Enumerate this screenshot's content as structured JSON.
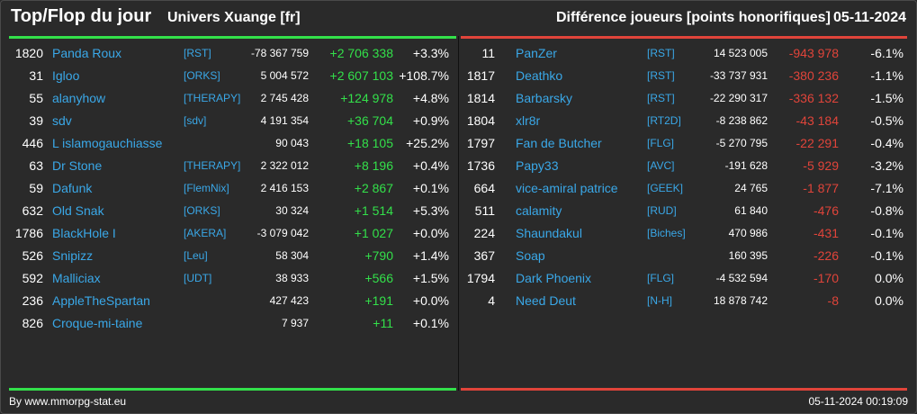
{
  "header": {
    "title": "Top/Flop du jour",
    "universe": "Univers Xuange [fr]",
    "metric": "Différence joueurs [points honorifiques]",
    "date": "05-11-2024"
  },
  "colors": {
    "top_accent": "#33e04a",
    "flop_accent": "#e0443a",
    "name_link": "#3aa8e8",
    "background": "#2a2a2a"
  },
  "top": [
    {
      "rank": "1820",
      "name": "Panda Roux",
      "alliance": "[RST]",
      "points": "-78 367 759",
      "diff": "+2 706 338",
      "pct": "+3.3%"
    },
    {
      "rank": "31",
      "name": "Igloo",
      "alliance": "[ORKS]",
      "points": "5 004 572",
      "diff": "+2 607 103",
      "pct": "+108.7%"
    },
    {
      "rank": "55",
      "name": "alanyhow",
      "alliance": "[THERAPY]",
      "points": "2 745 428",
      "diff": "+124 978",
      "pct": "+4.8%"
    },
    {
      "rank": "39",
      "name": "sdv",
      "alliance": "[sdv]",
      "points": "4 191 354",
      "diff": "+36 704",
      "pct": "+0.9%"
    },
    {
      "rank": "446",
      "name": "L islamogauchiasse",
      "alliance": "",
      "points": "90 043",
      "diff": "+18 105",
      "pct": "+25.2%"
    },
    {
      "rank": "63",
      "name": "Dr Stone",
      "alliance": "[THERAPY]",
      "points": "2 322 012",
      "diff": "+8 196",
      "pct": "+0.4%"
    },
    {
      "rank": "59",
      "name": "Dafunk",
      "alliance": "[FlemNix]",
      "points": "2 416 153",
      "diff": "+2 867",
      "pct": "+0.1%"
    },
    {
      "rank": "632",
      "name": "Old Snak",
      "alliance": "[ORKS]",
      "points": "30 324",
      "diff": "+1 514",
      "pct": "+5.3%"
    },
    {
      "rank": "1786",
      "name": "BlackHole I",
      "alliance": "[AKERA]",
      "points": "-3 079 042",
      "diff": "+1 027",
      "pct": "+0.0%"
    },
    {
      "rank": "526",
      "name": "Snipizz",
      "alliance": "[Leu]",
      "points": "58 304",
      "diff": "+790",
      "pct": "+1.4%"
    },
    {
      "rank": "592",
      "name": "Malliciax",
      "alliance": "[UDT]",
      "points": "38 933",
      "diff": "+566",
      "pct": "+1.5%"
    },
    {
      "rank": "236",
      "name": "AppleTheSpartan",
      "alliance": "",
      "points": "427 423",
      "diff": "+191",
      "pct": "+0.0%"
    },
    {
      "rank": "826",
      "name": "Croque-mi-taine",
      "alliance": "",
      "points": "7 937",
      "diff": "+11",
      "pct": "+0.1%"
    }
  ],
  "flop": [
    {
      "rank": "11",
      "name": "PanZer",
      "alliance": "[RST]",
      "points": "14 523 005",
      "diff": "-943 978",
      "pct": "-6.1%"
    },
    {
      "rank": "1817",
      "name": "Deathko",
      "alliance": "[RST]",
      "points": "-33 737 931",
      "diff": "-380 236",
      "pct": "-1.1%"
    },
    {
      "rank": "1814",
      "name": "Barbarsky",
      "alliance": "[RST]",
      "points": "-22 290 317",
      "diff": "-336 132",
      "pct": "-1.5%"
    },
    {
      "rank": "1804",
      "name": "xlr8r",
      "alliance": "[RT2D]",
      "points": "-8 238 862",
      "diff": "-43 184",
      "pct": "-0.5%"
    },
    {
      "rank": "1797",
      "name": "Fan de Butcher",
      "alliance": "[FLG]",
      "points": "-5 270 795",
      "diff": "-22 291",
      "pct": "-0.4%"
    },
    {
      "rank": "1736",
      "name": "Papy33",
      "alliance": "[AVC]",
      "points": "-191 628",
      "diff": "-5 929",
      "pct": "-3.2%"
    },
    {
      "rank": "664",
      "name": "vice-amiral patrice",
      "alliance": "[GEEK]",
      "points": "24 765",
      "diff": "-1 877",
      "pct": "-7.1%"
    },
    {
      "rank": "511",
      "name": "calamity",
      "alliance": "[RUD]",
      "points": "61 840",
      "diff": "-476",
      "pct": "-0.8%"
    },
    {
      "rank": "224",
      "name": "Shaundakul",
      "alliance": "[Biches]",
      "points": "470 986",
      "diff": "-431",
      "pct": "-0.1%"
    },
    {
      "rank": "367",
      "name": "Soap",
      "alliance": "",
      "points": "160 395",
      "diff": "-226",
      "pct": "-0.1%"
    },
    {
      "rank": "1794",
      "name": "Dark Phoenix",
      "alliance": "[FLG]",
      "points": "-4 532 594",
      "diff": "-170",
      "pct": "0.0%"
    },
    {
      "rank": "4",
      "name": "Need Deut",
      "alliance": "[N-H]",
      "points": "18 878 742",
      "diff": "-8",
      "pct": "0.0%"
    }
  ],
  "footer": {
    "credit": "By www.mmorpg-stat.eu",
    "timestamp": "05-11-2024 00:19:09"
  }
}
